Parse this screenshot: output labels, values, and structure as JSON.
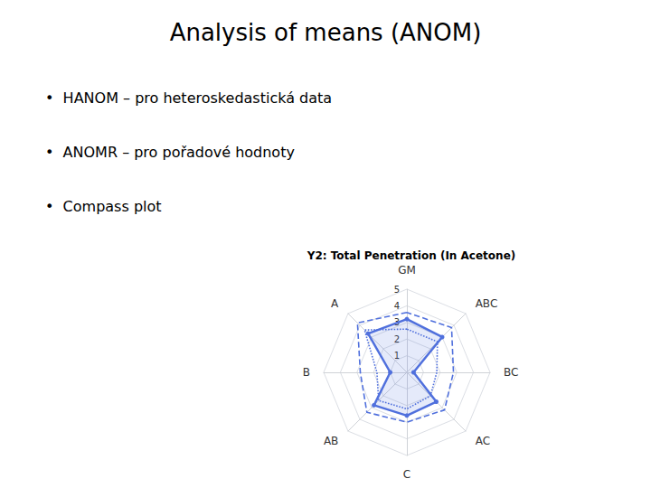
{
  "chart_data": {
    "type": "radar",
    "title": "Analysis of means (ANOM)",
    "subtitle": "Y2: Total Penetration (In Acetone)",
    "annotations": [
      "•  HANOM – pro heteroskedastická data",
      "•  ANOMR – pro pořadové hodnoty",
      "•  Compass plot"
    ],
    "categories": [
      "GM",
      "A",
      "B",
      "AB",
      "C",
      "AC",
      "BC",
      "ABC"
    ],
    "series": [
      {
        "values": [
          3.6,
          4.2,
          2.8,
          3.4,
          3.0,
          3.2,
          2.8,
          3.8
        ],
        "line_style": "dashed"
      },
      {
        "values": [
          2.6,
          3.6,
          1.8,
          2.4,
          2.2,
          2.0,
          1.8,
          2.6
        ],
        "line_style": "dotted"
      },
      {
        "values": [
          3.2,
          3.3,
          1.0,
          2.8,
          2.6,
          2.5,
          0.4,
          3.0
        ],
        "line_style": "solid",
        "marker": "circle"
      }
    ],
    "ylim": [
      0,
      5
    ],
    "yticks": [
      1,
      2,
      3,
      4,
      5
    ],
    "grid": true
  }
}
